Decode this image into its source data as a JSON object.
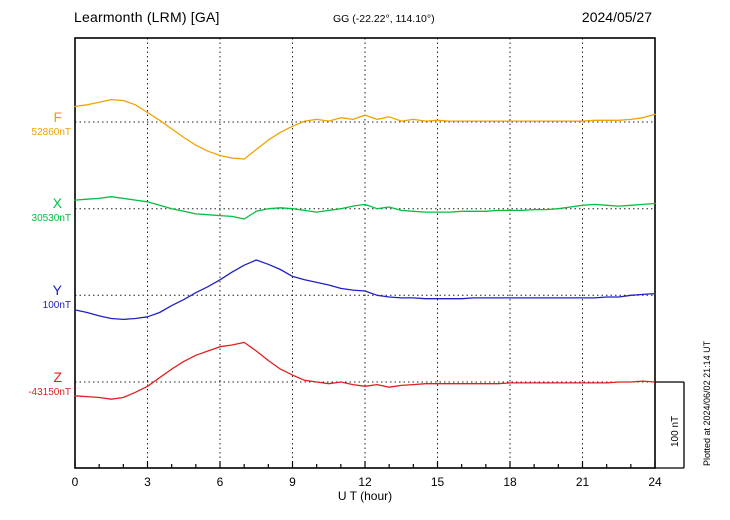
{
  "header": {
    "station": "Learmonth (LRM)  [GA]",
    "coords": "GG (-22.22°, 114.10°)",
    "date": "2024/05/27"
  },
  "chart_data": {
    "type": "line",
    "title": "Learmonth (LRM) [GA] magnetogram for 2024/05/27",
    "xlabel": "U T (hour)",
    "x_range": [
      0,
      24
    ],
    "x_ticks": [
      0,
      3,
      6,
      9,
      12,
      15,
      18,
      21,
      24
    ],
    "x_step_hours": 0.5,
    "grid": "dotted vertical lines at 3-hour intervals; dotted horizontal baseline per trace",
    "scale_bar": {
      "label": "100 nT",
      "span_nT": 100
    },
    "plotted_at": "Plotted at 2024/06/02 21:14 UT",
    "series": [
      {
        "name": "F",
        "baseline_value_label": "52860nT",
        "color": "#f2a200",
        "offsets_nT": [
          18,
          20,
          23,
          26,
          25,
          20,
          11,
          2,
          -8,
          -18,
          -27,
          -34,
          -39,
          -42,
          -43,
          -32,
          -21,
          -12,
          -5,
          1,
          3,
          1,
          5,
          3,
          8,
          3,
          6,
          1,
          3,
          1,
          2,
          1,
          1,
          1,
          1,
          1,
          1,
          1,
          1,
          1,
          1,
          1,
          1,
          2,
          2,
          2,
          3,
          5,
          9
        ]
      },
      {
        "name": "X",
        "baseline_value_label": "30530nT",
        "color": "#00c040",
        "offsets_nT": [
          10,
          11,
          12,
          14,
          12,
          10,
          8,
          4,
          0,
          -3,
          -6,
          -7,
          -8,
          -9,
          -12,
          -3,
          0,
          1,
          0,
          -2,
          -4,
          -2,
          0,
          3,
          5,
          0,
          2,
          -2,
          -3,
          -4,
          -4,
          -4,
          -3,
          -3,
          -3,
          -2,
          -2,
          -2,
          -1,
          -1,
          0,
          2,
          4,
          5,
          4,
          3,
          4,
          5,
          6
        ]
      },
      {
        "name": "Y",
        "baseline_value_label": "100nT",
        "color": "#2020c0",
        "offsets_nT": [
          -17,
          -20,
          -24,
          -27,
          -28,
          -27,
          -25,
          -20,
          -12,
          -5,
          3,
          10,
          18,
          27,
          35,
          41,
          36,
          30,
          22,
          18,
          15,
          12,
          8,
          6,
          5,
          0,
          -2,
          -3,
          -3,
          -4,
          -4,
          -4,
          -4,
          -3,
          -3,
          -3,
          -3,
          -3,
          -3,
          -3,
          -3,
          -3,
          -3,
          -3,
          -2,
          -2,
          0,
          1,
          2
        ]
      },
      {
        "name": "Z",
        "baseline_value_label": "-43150nT",
        "color": "#e02020",
        "offsets_nT": [
          -16,
          -17,
          -18,
          -20,
          -18,
          -12,
          -5,
          5,
          15,
          24,
          31,
          36,
          41,
          43,
          46,
          36,
          25,
          15,
          8,
          2,
          0,
          -2,
          0,
          -3,
          -5,
          -3,
          -6,
          -4,
          -3,
          -2,
          -2,
          -2,
          -2,
          -2,
          -2,
          -2,
          -1,
          -1,
          -1,
          -1,
          -1,
          -1,
          -1,
          -1,
          -1,
          0,
          0,
          1,
          0
        ]
      }
    ]
  }
}
